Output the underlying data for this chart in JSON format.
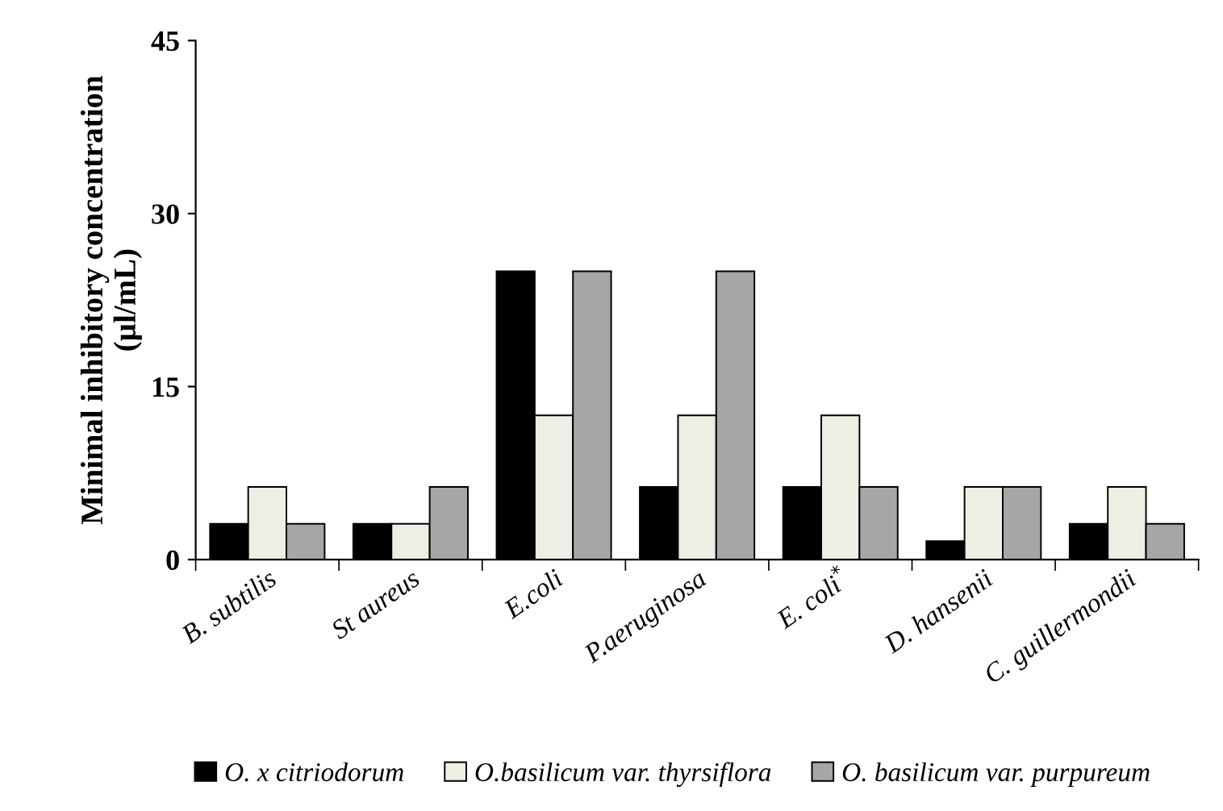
{
  "chart_data": {
    "type": "bar",
    "ylabel": "Minimal inhibitory concentration\n(µl/mL)",
    "categories": [
      "B. subtilis",
      "St aureus",
      "E.coli",
      "P.aeruginosa",
      "E. coli$^{*}$",
      "D. hansenii",
      "C. guillermondii"
    ],
    "series": [
      {
        "name": "O. x citriodorum",
        "color": "#000000",
        "values": [
          3.1,
          3.1,
          25,
          6.3,
          6.3,
          1.6,
          3.1
        ]
      },
      {
        "name": "O.basilicum var. thyrsiflora",
        "color": "#eeeee4",
        "values": [
          6.3,
          3.1,
          12.5,
          12.5,
          12.5,
          6.3,
          6.3
        ]
      },
      {
        "name": "O. basilicum var. purpureum",
        "color": "#a6a6a6",
        "values": [
          3.1,
          6.3,
          25,
          25,
          6.3,
          6.3,
          3.1
        ]
      }
    ],
    "ylim": [
      0,
      45
    ],
    "yticks": [
      0,
      15,
      30,
      45
    ],
    "grid": false,
    "legend": "bottom"
  }
}
